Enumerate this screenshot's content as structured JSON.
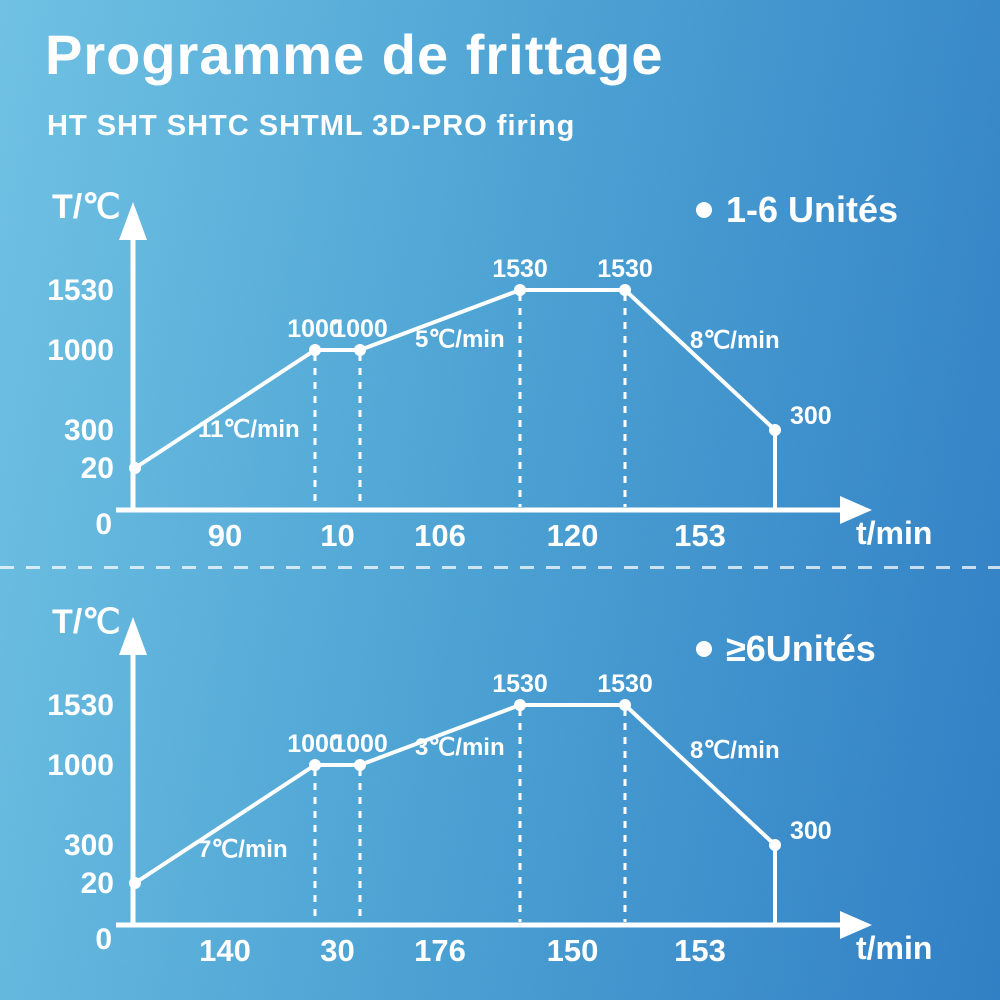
{
  "title": "Programme de frittage",
  "subtitle": "HT SHT SHTC SHTML 3D-PRO firing",
  "colors": {
    "background_start": "#6ec2e4",
    "background_mid": "#4aa2d4",
    "background_end": "#2e7ec5",
    "line": "#ffffff",
    "text": "#ffffff"
  },
  "chart_data": [
    {
      "type": "line",
      "legend": {
        "label": "1-6 Unités",
        "y": 52
      },
      "y_axis_label": "T/℃",
      "x_axis_label": "t/min",
      "y_ticks": [
        {
          "label": "1530",
          "temp": 1530
        },
        {
          "label": "1000",
          "temp": 1000
        },
        {
          "label": "300",
          "temp": 300
        },
        {
          "label": "20",
          "temp": 20
        },
        {
          "label": "0",
          "temp": 0
        }
      ],
      "x_segment_labels": [
        "90",
        "10",
        "106",
        "120",
        "153"
      ],
      "heating_rates": [
        {
          "text": "11℃/min",
          "x": 198,
          "y": 267
        },
        {
          "text": "5℃/min",
          "x": 415,
          "y": 177
        },
        {
          "text": "8℃/min",
          "x": 690,
          "y": 178
        }
      ],
      "points": [
        {
          "temp": 20,
          "x": 135
        },
        {
          "temp": 1000,
          "x": 315,
          "label": "1000",
          "label_pos": "above",
          "dashed_drop": true
        },
        {
          "temp": 1000,
          "x": 360,
          "label": "1000",
          "label_pos": "above",
          "dashed_drop": true
        },
        {
          "temp": 1530,
          "x": 520,
          "label": "1530",
          "label_pos": "above",
          "dashed_drop": true
        },
        {
          "temp": 1530,
          "x": 625,
          "label": "1530",
          "label_pos": "above",
          "dashed_drop": true
        },
        {
          "temp": 300,
          "x": 775,
          "label": "300",
          "label_pos": "right",
          "solid_drop": true
        }
      ],
      "temp_y": {
        "0": 340,
        "20": 298,
        "300": 260,
        "1000": 180,
        "1530": 120
      }
    },
    {
      "type": "line",
      "legend": {
        "label": "≥6Unités",
        "y": 76
      },
      "y_axis_label": "T/℃",
      "x_axis_label": "t/min",
      "y_ticks": [
        {
          "label": "1530",
          "temp": 1530
        },
        {
          "label": "1000",
          "temp": 1000
        },
        {
          "label": "300",
          "temp": 300
        },
        {
          "label": "20",
          "temp": 20
        },
        {
          "label": "0",
          "temp": 0
        }
      ],
      "x_segment_labels": [
        "140",
        "30",
        "176",
        "150",
        "153"
      ],
      "heating_rates": [
        {
          "text": "7℃/min",
          "x": 198,
          "y": 272
        },
        {
          "text": "3℃/min",
          "x": 415,
          "y": 170
        },
        {
          "text": "8℃/min",
          "x": 690,
          "y": 173
        }
      ],
      "points": [
        {
          "temp": 20,
          "x": 135
        },
        {
          "temp": 1000,
          "x": 315,
          "label": "1000",
          "label_pos": "above",
          "dashed_drop": true
        },
        {
          "temp": 1000,
          "x": 360,
          "label": "1000",
          "label_pos": "above",
          "dashed_drop": true
        },
        {
          "temp": 1530,
          "x": 520,
          "label": "1530",
          "label_pos": "above",
          "dashed_drop": true
        },
        {
          "temp": 1530,
          "x": 625,
          "label": "1530",
          "label_pos": "above",
          "dashed_drop": true
        },
        {
          "temp": 300,
          "x": 775,
          "label": "300",
          "label_pos": "right",
          "solid_drop": true
        }
      ],
      "temp_y": {
        "0": 340,
        "20": 298,
        "300": 260,
        "1000": 180,
        "1530": 120
      }
    }
  ]
}
